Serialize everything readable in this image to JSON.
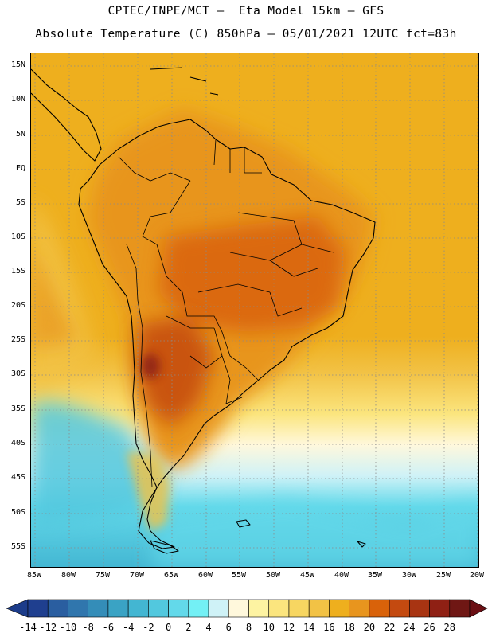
{
  "header": {
    "title_line1": "CPTEC/INPE/MCT –  Eta Model 15km – GFS",
    "title_line2": "Absolute Temperature (C) 850hPa – 05/01/2021 12UTC fct=83h"
  },
  "map": {
    "region": "South America",
    "variable": "Absolute Temperature (C) 850hPa",
    "lat_labels": [
      "15N",
      "10N",
      "5N",
      "EQ",
      "5S",
      "10S",
      "15S",
      "20S",
      "25S",
      "30S",
      "35S",
      "40S",
      "45S",
      "50S",
      "55S"
    ],
    "lon_labels": [
      "85W",
      "80W",
      "75W",
      "70W",
      "65W",
      "60W",
      "55W",
      "50W",
      "45W",
      "40W",
      "35W",
      "30W",
      "25W",
      "20W"
    ],
    "grid_color": "#8a8a8a",
    "coast_color": "#000000"
  },
  "colorbar": {
    "labels": [
      "-14",
      "-12",
      "-10",
      "-8",
      "-6",
      "-4",
      "-2",
      "0",
      "2",
      "4",
      "6",
      "8",
      "10",
      "12",
      "14",
      "16",
      "18",
      "20",
      "22",
      "24",
      "26",
      "28"
    ],
    "left_arrow_color": "#1c3c8a",
    "right_arrow_color": "#6b0f14",
    "colors": [
      "#1f3f8f",
      "#2a5ea0",
      "#3076ad",
      "#348db8",
      "#3aa3c4",
      "#43b6d2",
      "#52c8de",
      "#63d9ea",
      "#73f0f5",
      "#cff2f7",
      "#fff8dc",
      "#fdf3a2",
      "#fbe57e",
      "#f7d661",
      "#f2c245",
      "#eeaf1e",
      "#e8951e",
      "#d9620a",
      "#c44a10",
      "#a83412",
      "#8f2014",
      "#6f1714"
    ]
  }
}
